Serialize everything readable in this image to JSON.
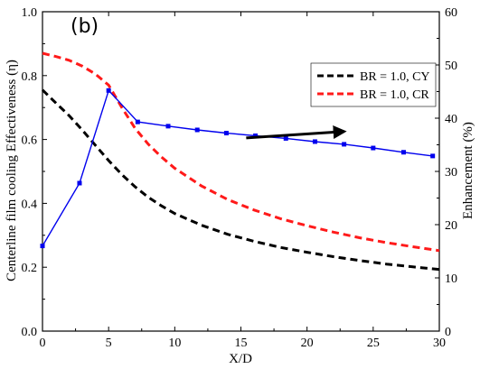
{
  "chart_data": {
    "type": "line",
    "panel_label": "(b)",
    "xlabel": "X/D",
    "ylabel_left": "Centerline film cooling Effectiveness (η)",
    "ylabel_right": "Enhancement (%)",
    "xlim": [
      0,
      30
    ],
    "ylim_left": [
      0.0,
      1.0
    ],
    "ylim_right": [
      0,
      60
    ],
    "x_ticks": [
      "0",
      "5",
      "10",
      "15",
      "20",
      "25",
      "30"
    ],
    "y_left_ticks": [
      "0.0",
      "0.2",
      "0.4",
      "0.6",
      "0.8",
      "1.0"
    ],
    "y_right_ticks": [
      "0",
      "10",
      "20",
      "30",
      "40",
      "50",
      "60"
    ],
    "grid": false,
    "legend_position": "top-right",
    "colors": {
      "cy": "#000000",
      "cr": "#ff1a1a",
      "enhancement": "#0000ee",
      "arrow": "#000000"
    },
    "series": [
      {
        "name": "BR = 1.0, CY",
        "axis": "left",
        "style": "dashed",
        "x": [
          0,
          1,
          2,
          3,
          4,
          5,
          6,
          7,
          8,
          9,
          10,
          12,
          14,
          16,
          18,
          20,
          22,
          24,
          26,
          28,
          30
        ],
        "y": [
          0.755,
          0.715,
          0.675,
          0.63,
          0.582,
          0.534,
          0.49,
          0.452,
          0.419,
          0.392,
          0.368,
          0.332,
          0.303,
          0.281,
          0.262,
          0.247,
          0.233,
          0.221,
          0.21,
          0.201,
          0.193
        ]
      },
      {
        "name": "BR = 1.0, CR",
        "axis": "left",
        "style": "dashed",
        "x": [
          0,
          1,
          2,
          3,
          4,
          5,
          6,
          7,
          8,
          9,
          10,
          12,
          14,
          16,
          18,
          20,
          22,
          24,
          26,
          28,
          30
        ],
        "y": [
          0.87,
          0.86,
          0.848,
          0.83,
          0.805,
          0.77,
          0.7,
          0.635,
          0.585,
          0.545,
          0.51,
          0.455,
          0.412,
          0.379,
          0.352,
          0.33,
          0.31,
          0.292,
          0.277,
          0.264,
          0.252
        ]
      },
      {
        "name": "Enhancement",
        "axis": "right",
        "style": "solid-marker",
        "x": [
          0,
          2.8,
          5.0,
          7.2,
          9.5,
          11.7,
          13.9,
          16.1,
          18.4,
          20.6,
          22.8,
          25.0,
          27.3,
          29.5
        ],
        "y": [
          16.0,
          27.8,
          45.2,
          39.3,
          38.5,
          37.8,
          37.2,
          36.7,
          36.2,
          35.6,
          35.1,
          34.4,
          33.6,
          32.9
        ]
      }
    ],
    "annotations": [
      {
        "type": "arrow",
        "from": [
          15.4,
          0.605
        ],
        "to": [
          22.8,
          0.625
        ]
      }
    ]
  }
}
